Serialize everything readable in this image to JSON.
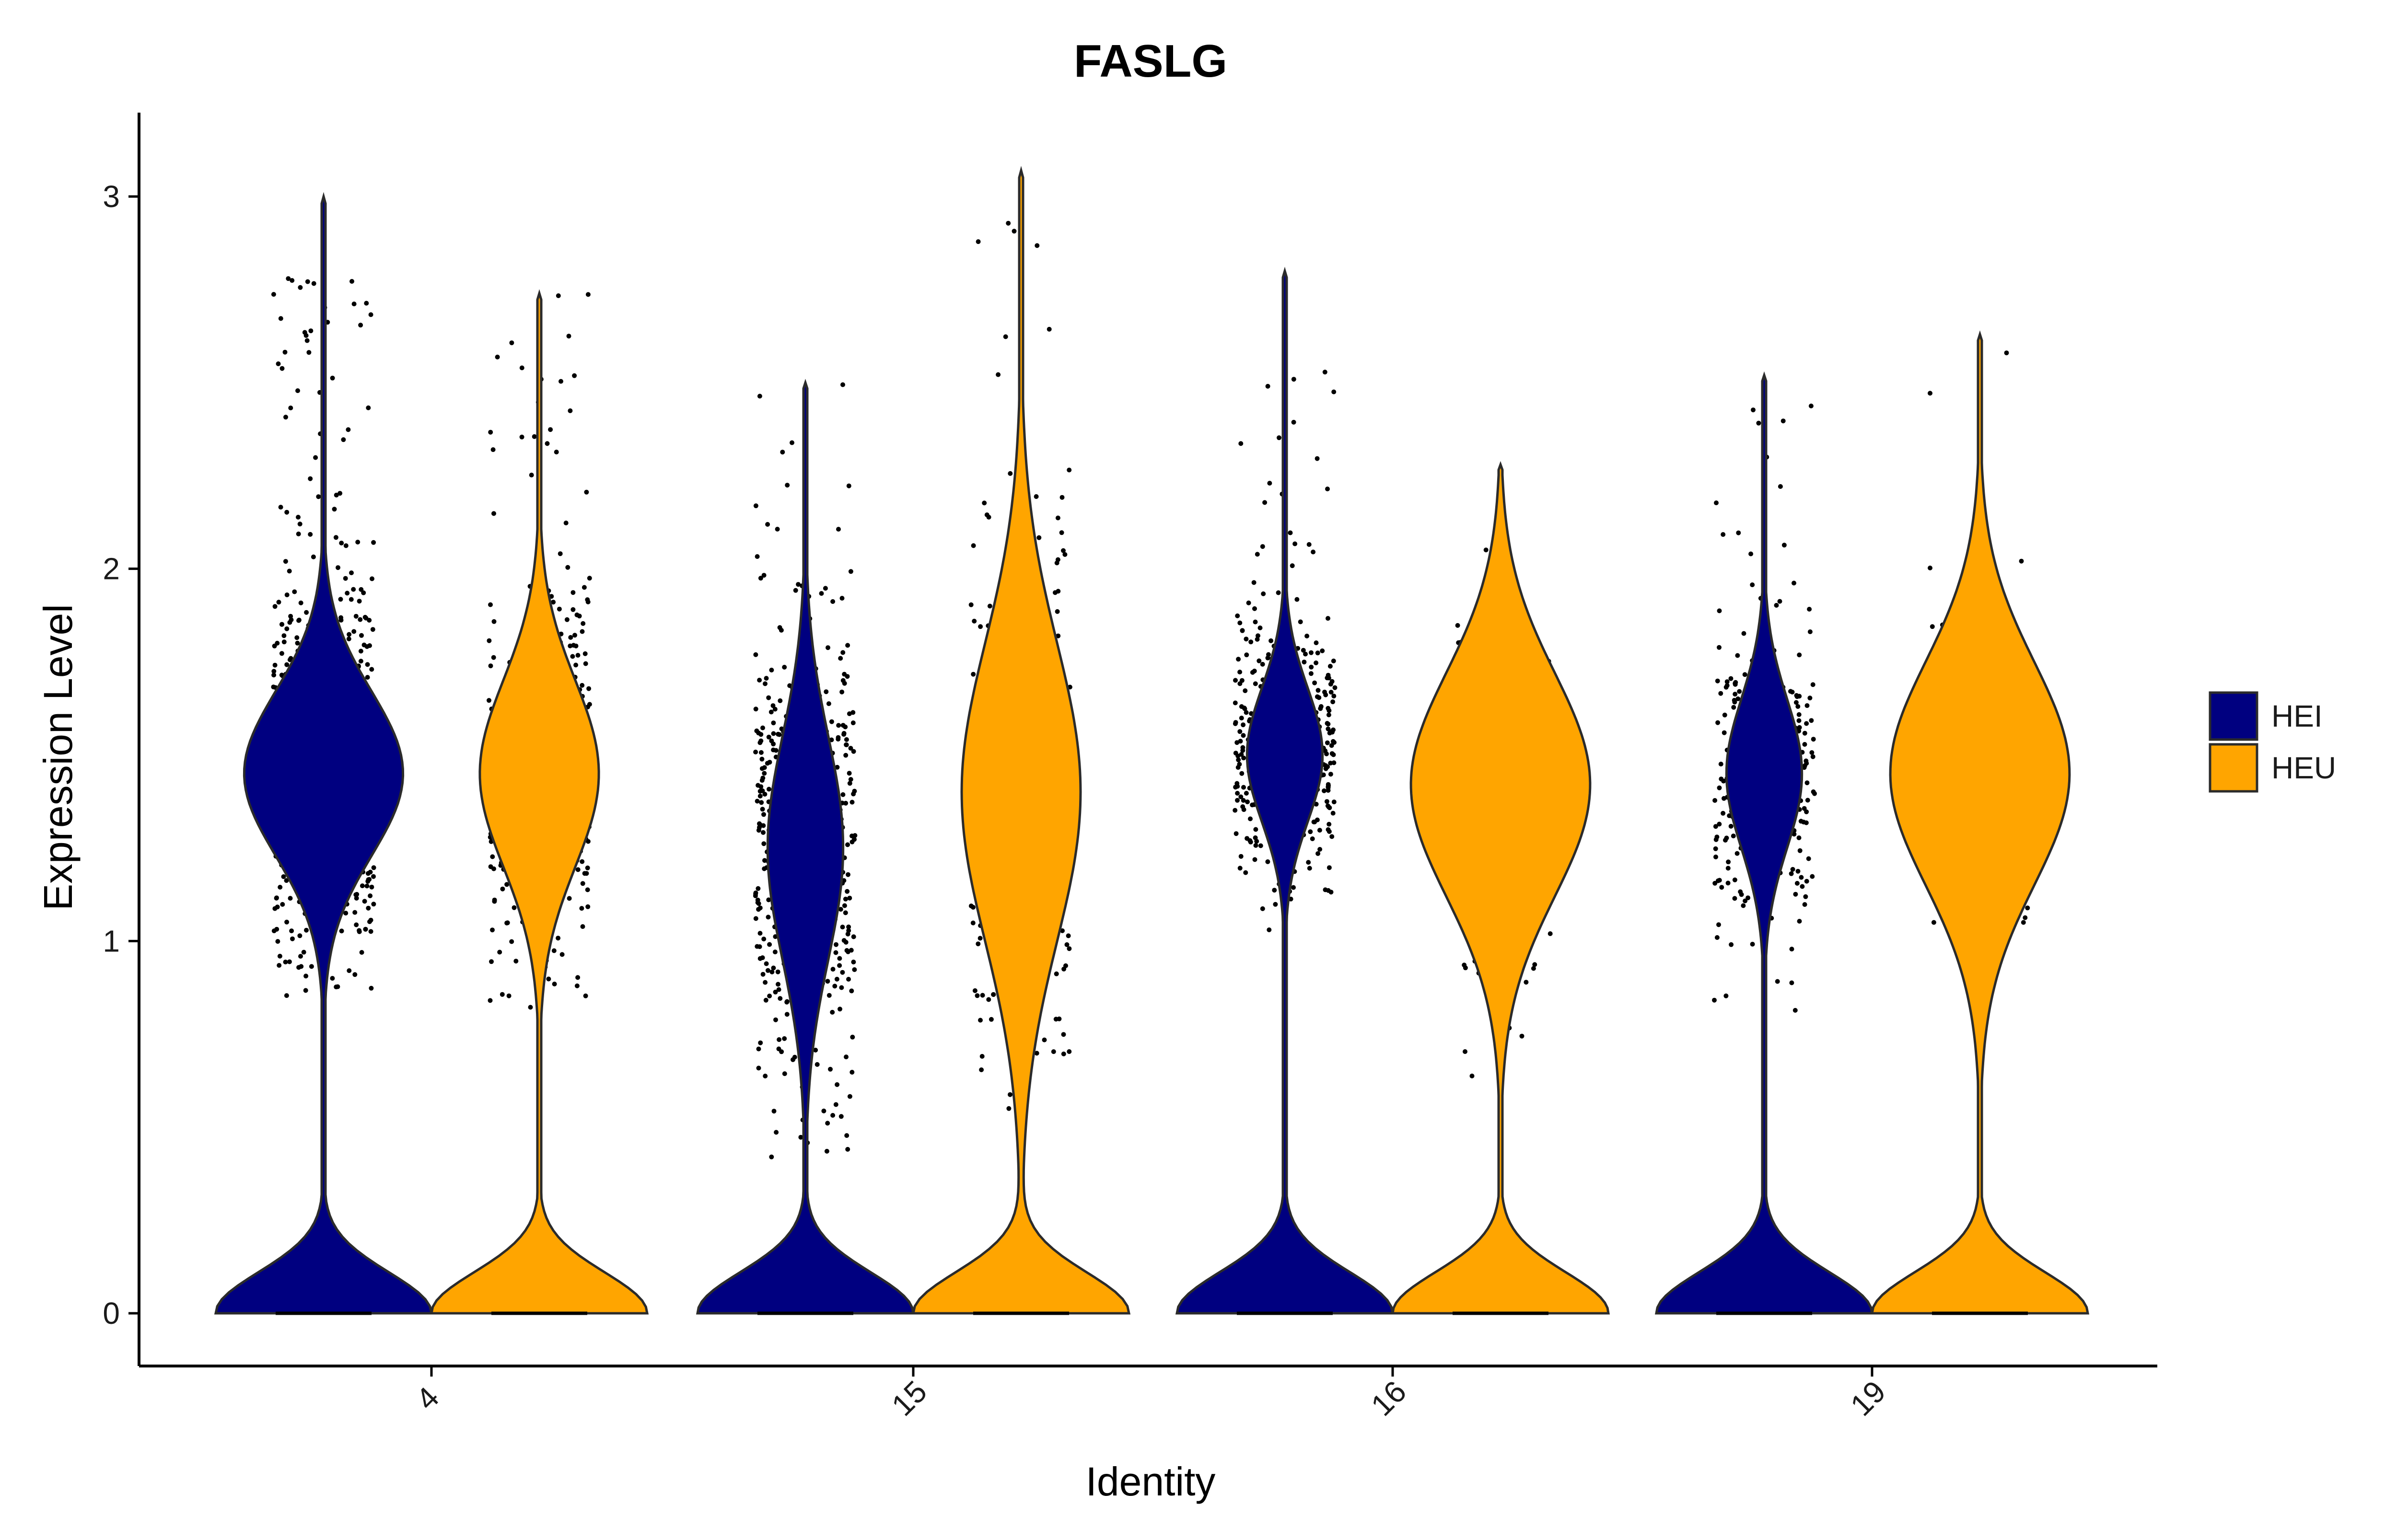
{
  "chart_data": {
    "type": "violin",
    "title": "FASLG",
    "xlabel": "Identity",
    "ylabel": "Expression Level",
    "ylim": [
      -0.15,
      3.22
    ],
    "yticks": [
      0,
      1,
      2,
      3
    ],
    "grid": false,
    "legend": {
      "placement": "right",
      "entries": [
        {
          "name": "HEI",
          "color": "#000080"
        },
        {
          "name": "HEU",
          "color": "#FFA500"
        }
      ]
    },
    "categories": [
      "4",
      "15",
      "16",
      "19"
    ],
    "series": [
      {
        "name": "HEI",
        "color": "#000080",
        "groups": [
          {
            "identity": "4",
            "max": 3.0,
            "upper_mode": 1.45,
            "upper_spread": 0.22,
            "zero_mass": 0.55,
            "jitter_points": 1100,
            "points_range": [
              0.85,
              2.78
            ]
          },
          {
            "identity": "15",
            "max": 2.5,
            "upper_mode": 1.25,
            "upper_spread": 0.3,
            "zero_mass": 0.72,
            "jitter_points": 520,
            "points_range": [
              0.42,
              2.5
            ]
          },
          {
            "identity": "16",
            "max": 2.8,
            "upper_mode": 1.5,
            "upper_spread": 0.18,
            "zero_mass": 0.72,
            "jitter_points": 430,
            "points_range": [
              1.03,
              2.55
            ]
          },
          {
            "identity": "19",
            "max": 2.52,
            "upper_mode": 1.45,
            "upper_spread": 0.2,
            "zero_mass": 0.72,
            "jitter_points": 330,
            "points_range": [
              0.72,
              2.5
            ]
          }
        ]
      },
      {
        "name": "HEU",
        "color": "#FFA500",
        "groups": [
          {
            "identity": "4",
            "max": 2.74,
            "upper_mode": 1.45,
            "upper_spread": 0.25,
            "zero_mass": 0.62,
            "jitter_points": 520,
            "points_range": [
              0.78,
              2.74
            ]
          },
          {
            "identity": "15",
            "max": 3.07,
            "upper_mode": 1.4,
            "upper_spread": 0.4,
            "zero_mass": 0.62,
            "jitter_points": 300,
            "points_range": [
              0.55,
              3.07
            ]
          },
          {
            "identity": "16",
            "max": 2.28,
            "upper_mode": 1.42,
            "upper_spread": 0.3,
            "zero_mass": 0.52,
            "jitter_points": 70,
            "points_range": [
              0.6,
              2.28
            ]
          },
          {
            "identity": "19",
            "max": 2.63,
            "upper_mode": 1.45,
            "upper_spread": 0.3,
            "zero_mass": 0.52,
            "jitter_points": 75,
            "points_range": [
              1.05,
              2.63
            ]
          }
        ]
      }
    ]
  }
}
